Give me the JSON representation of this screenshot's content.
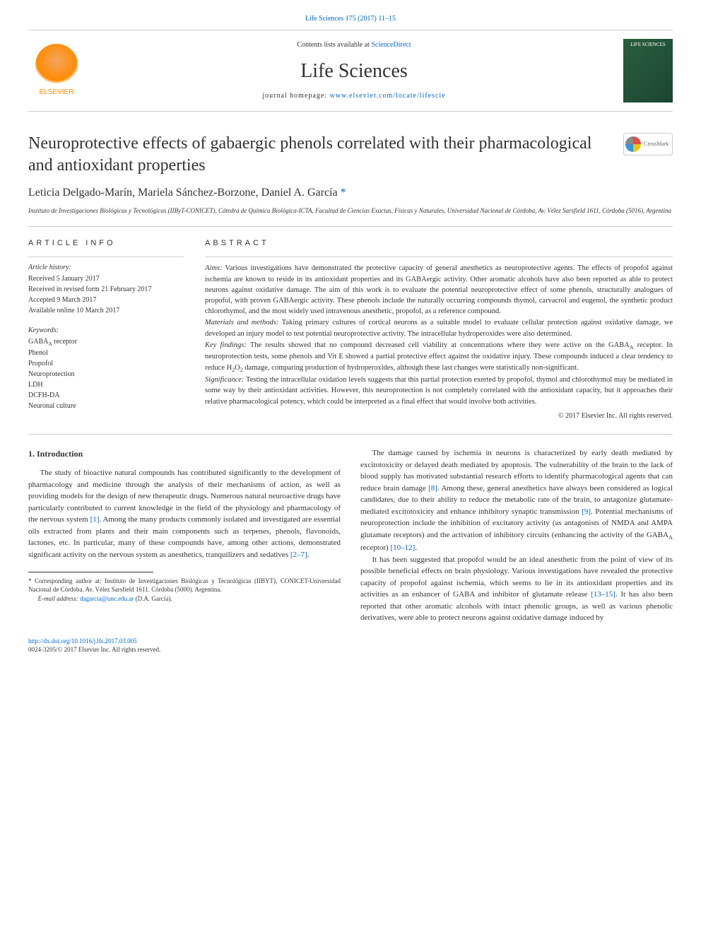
{
  "header": {
    "citation": "Life Sciences 175 (2017) 11–15",
    "contents_prefix": "Contents lists available at ",
    "contents_link": "ScienceDirect",
    "journal_name": "Life Sciences",
    "homepage_prefix": "journal homepage: ",
    "homepage_link": "www.elsevier.com/locate/lifescie",
    "publisher_logo_text": "ELSEVIER",
    "cover_text": "LIFE SCIENCES"
  },
  "title": "Neuroprotective effects of gabaergic phenols correlated with their pharmacological and antioxidant properties",
  "crossmark_label": "CrossMark",
  "authors": "Leticia Delgado-Marín, Mariela Sánchez-Borzone, Daniel A. García ",
  "corresponding_mark": "*",
  "affiliation": "Instituto de Investigaciones Biológicas y Tecnológicas (IIByT-CONICET), Cátedra de Química Biológica-ICTA, Facultad de Ciencias Exactas, Físicas y Naturales, Universidad Nacional de Córdoba, Av. Vélez Sarsfield 1611, Córdoba (5016), Argentina",
  "article_info": {
    "heading": "ARTICLE INFO",
    "history_label": "Article history:",
    "history": [
      "Received 5 January 2017",
      "Received in revised form 21 February 2017",
      "Accepted 9 March 2017",
      "Available online 10 March 2017"
    ],
    "keywords_label": "Keywords:",
    "keywords": [
      "GABA<sub>A</sub> receptor",
      "Phenol",
      "Propofol",
      "Neuroprotection",
      "LDH",
      "DCFH-DA",
      "Neuronal culture"
    ]
  },
  "abstract": {
    "heading": "ABSTRACT",
    "sections": [
      {
        "label": "Aims:",
        "text": " Various investigations have demonstrated the protective capacity of general anesthetics as neuroprotective agents. The effects of propofol against ischemia are known to reside in its antioxidant properties and its GABAergic activity. Other aromatic alcohols have also been reported as able to protect neurons against oxidative damage. The aim of this work is to evaluate the potential neuroprotective effect of some phenols, structurally analogues of propofol, with proven GABAergic activity. These phenols include the naturally occurring compounds thymol, carvacrol and eugenol, the synthetic product chlorothymol, and the most widely used intravenous anesthetic, propofol, as a reference compound."
      },
      {
        "label": "Materials and methods:",
        "text": " Taking primary cultures of cortical neurons as a suitable model to evaluate cellular protection against oxidative damage, we developed an injury model to test potential neuroprotective activity. The intracellular hydroperoxides were also determined."
      },
      {
        "label": "Key findings:",
        "text": " The results showed that no compound decreased cell viability at concentrations where they were active on the GABA<sub>A</sub> receptor. In neuroprotection tests, some phenols and Vit E showed a partial protective effect against the oxidative injury. These compounds induced a clear tendency to reduce H<sub>2</sub>O<sub>2</sub> damage, comparing production of hydroperoxides, although these last changes were statistically non-significant."
      },
      {
        "label": "Significance:",
        "text": " Testing the intracellular oxidation levels suggests that this partial protection exerted by propofol, thymol and chlorothymol may be mediated in some way by their antioxidant activities. However, this neuroprotection is not completely correlated with the antioxidant capacity, but it approaches their relative pharmacological potency, which could be interpreted as a final effect that would involve both activities."
      }
    ],
    "copyright": "© 2017 Elsevier Inc. All rights reserved."
  },
  "body": {
    "intro_heading": "1. Introduction",
    "left_paras": [
      "The study of bioactive natural compounds has contributed significantly to the development of pharmacology and medicine through the analysis of their mechanisms of action, as well as providing models for the design of new therapeutic drugs. Numerous natural neuroactive drugs have particularly contributed to current knowledge in the field of the physiology and pharmacology of the nervous system <a class=\"ref-link\" data-name=\"citation-link\" data-interactable=\"true\">[1]</a>. Among the many products commonly isolated and investigated are essential oils extracted from plants and their main components such as terpenes, phenols, flavonoids, lactones, etc. In particular, many of these compounds have, among other actions, demonstrated significant activity on the nervous system as anesthetics, tranquilizers and sedatives <a class=\"ref-link\" data-name=\"citation-link\" data-interactable=\"true\">[2–7]</a>."
    ],
    "right_paras": [
      "The damage caused by ischemia in neurons is characterized by early death mediated by excitotoxicity or delayed death mediated by apoptosis. The vulnerability of the brain to the lack of blood supply has motivated substantial research efforts to identify pharmacological agents that can reduce brain damage <a class=\"ref-link\" data-name=\"citation-link\" data-interactable=\"true\">[8]</a>. Among these, general anesthetics have always been considered as logical candidates, due to their ability to reduce the metabolic rate of the brain, to antagonize glutamate-mediated excitotoxicity and enhance inhibitory synaptic transmission <a class=\"ref-link\" data-name=\"citation-link\" data-interactable=\"true\">[9]</a>. Potential mechanisms of neuroprotection include the inhibition of excitatory activity (as antagonists of NMDA and AMPA glutamate receptors) and the activation of inhibitory circuits (enhancing the activity of the GABA<span class=\"sub\">A</span> receptor) <a class=\"ref-link\" data-name=\"citation-link\" data-interactable=\"true\">[10–12]</a>.",
      "It has been suggested that propofol would be an ideal anesthetic from the point of view of its possible beneficial effects on brain physiology. Various investigations have revealed the protective capacity of propofol against ischemia, which seems to lie in its antioxidant properties and its activities as an enhancer of GABA and inhibitor of glutamate release <a class=\"ref-link\" data-name=\"citation-link\" data-interactable=\"true\">[13–15]</a>. It has also been reported that other aromatic alcohols with intact phenolic groups, as well as various phenolic derivatives, were able to protect neurons against oxidative damage induced by"
    ]
  },
  "footnote": {
    "corresponding": "* Corresponding author at: Instituto de Investigaciones Biológicas y Tecnológicas (IIBYT), CONICET-Universidad Nacional de Córdoba. Av. Vélez Sarsfield 1611. Córdoba (5000). Argentina.",
    "email_label": "E-mail address: ",
    "email": "dagarcia@unc.edu.ar",
    "email_suffix": " (D.A. García)."
  },
  "footer": {
    "doi": "http://dx.doi.org/10.1016/j.lfs.2017.03.005",
    "issn_copyright": "0024-3205/© 2017 Elsevier Inc. All rights reserved."
  },
  "colors": {
    "link": "#0066cc",
    "text": "#333333",
    "rule": "#cccccc",
    "elsevier_orange": "#ff8c00",
    "cover_bg": "#2a5f3f"
  }
}
